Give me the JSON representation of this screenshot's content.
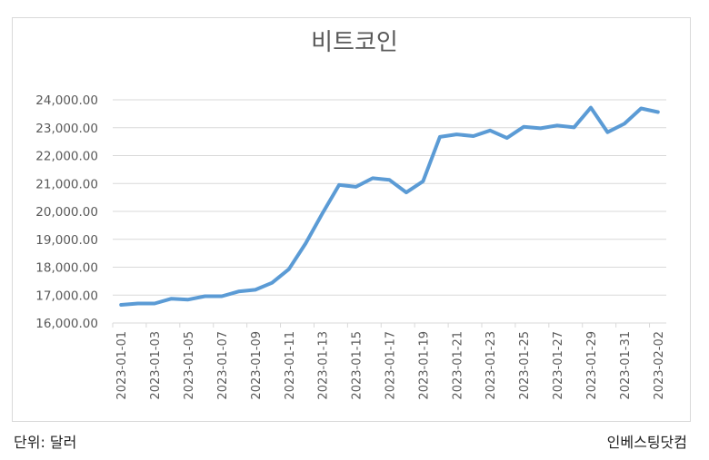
{
  "chart": {
    "title": "비트코인"
  },
  "footer": {
    "unit_label": "단위: 달러",
    "source_label": "인베스팅닷컴"
  },
  "colors": {
    "line": "#5b9bd5",
    "gridline": "#d9d9d9",
    "axis_text": "#595959",
    "frame": "#d9d9d9"
  },
  "chart_data": {
    "type": "line",
    "title": "비트코인",
    "xlabel": "",
    "ylabel": "",
    "unit_note": "단위: 달러",
    "source_note": "인베스팅닷컴",
    "ylim": [
      16000,
      24000
    ],
    "y_ticks": [
      "16,000.00",
      "17,000.00",
      "18,000.00",
      "19,000.00",
      "20,000.00",
      "21,000.00",
      "22,000.00",
      "23,000.00",
      "24,000.00"
    ],
    "y_tick_values": [
      16000,
      17000,
      18000,
      19000,
      20000,
      21000,
      22000,
      23000,
      24000
    ],
    "x_tick_labels": [
      "2023-01-01",
      "2023-01-03",
      "2023-01-05",
      "2023-01-07",
      "2023-01-09",
      "2023-01-11",
      "2023-01-13",
      "2023-01-15",
      "2023-01-17",
      "2023-01-19",
      "2023-01-21",
      "2023-01-23",
      "2023-01-25",
      "2023-01-27",
      "2023-01-29",
      "2023-01-31",
      "2023-02-02"
    ],
    "grid": true,
    "legend": null,
    "x": [
      "2023-01-01",
      "2023-01-02",
      "2023-01-03",
      "2023-01-04",
      "2023-01-05",
      "2023-01-06",
      "2023-01-07",
      "2023-01-08",
      "2023-01-09",
      "2023-01-10",
      "2023-01-11",
      "2023-01-12",
      "2023-01-13",
      "2023-01-14",
      "2023-01-15",
      "2023-01-16",
      "2023-01-17",
      "2023-01-18",
      "2023-01-19",
      "2023-01-20",
      "2023-01-21",
      "2023-01-22",
      "2023-01-23",
      "2023-01-24",
      "2023-01-25",
      "2023-01-26",
      "2023-01-27",
      "2023-01-28",
      "2023-01-29",
      "2023-01-30",
      "2023-01-31",
      "2023-02-01",
      "2023-02-02"
    ],
    "series": [
      {
        "name": "비트코인",
        "values": [
          16650,
          16700,
          16700,
          16870,
          16840,
          16960,
          16960,
          17130,
          17190,
          17440,
          17930,
          18850,
          19930,
          20950,
          20880,
          21190,
          21130,
          20680,
          21080,
          22670,
          22760,
          22700,
          22900,
          22630,
          23030,
          22980,
          23080,
          23010,
          23720,
          22840,
          23140,
          23690,
          23560
        ]
      }
    ]
  }
}
